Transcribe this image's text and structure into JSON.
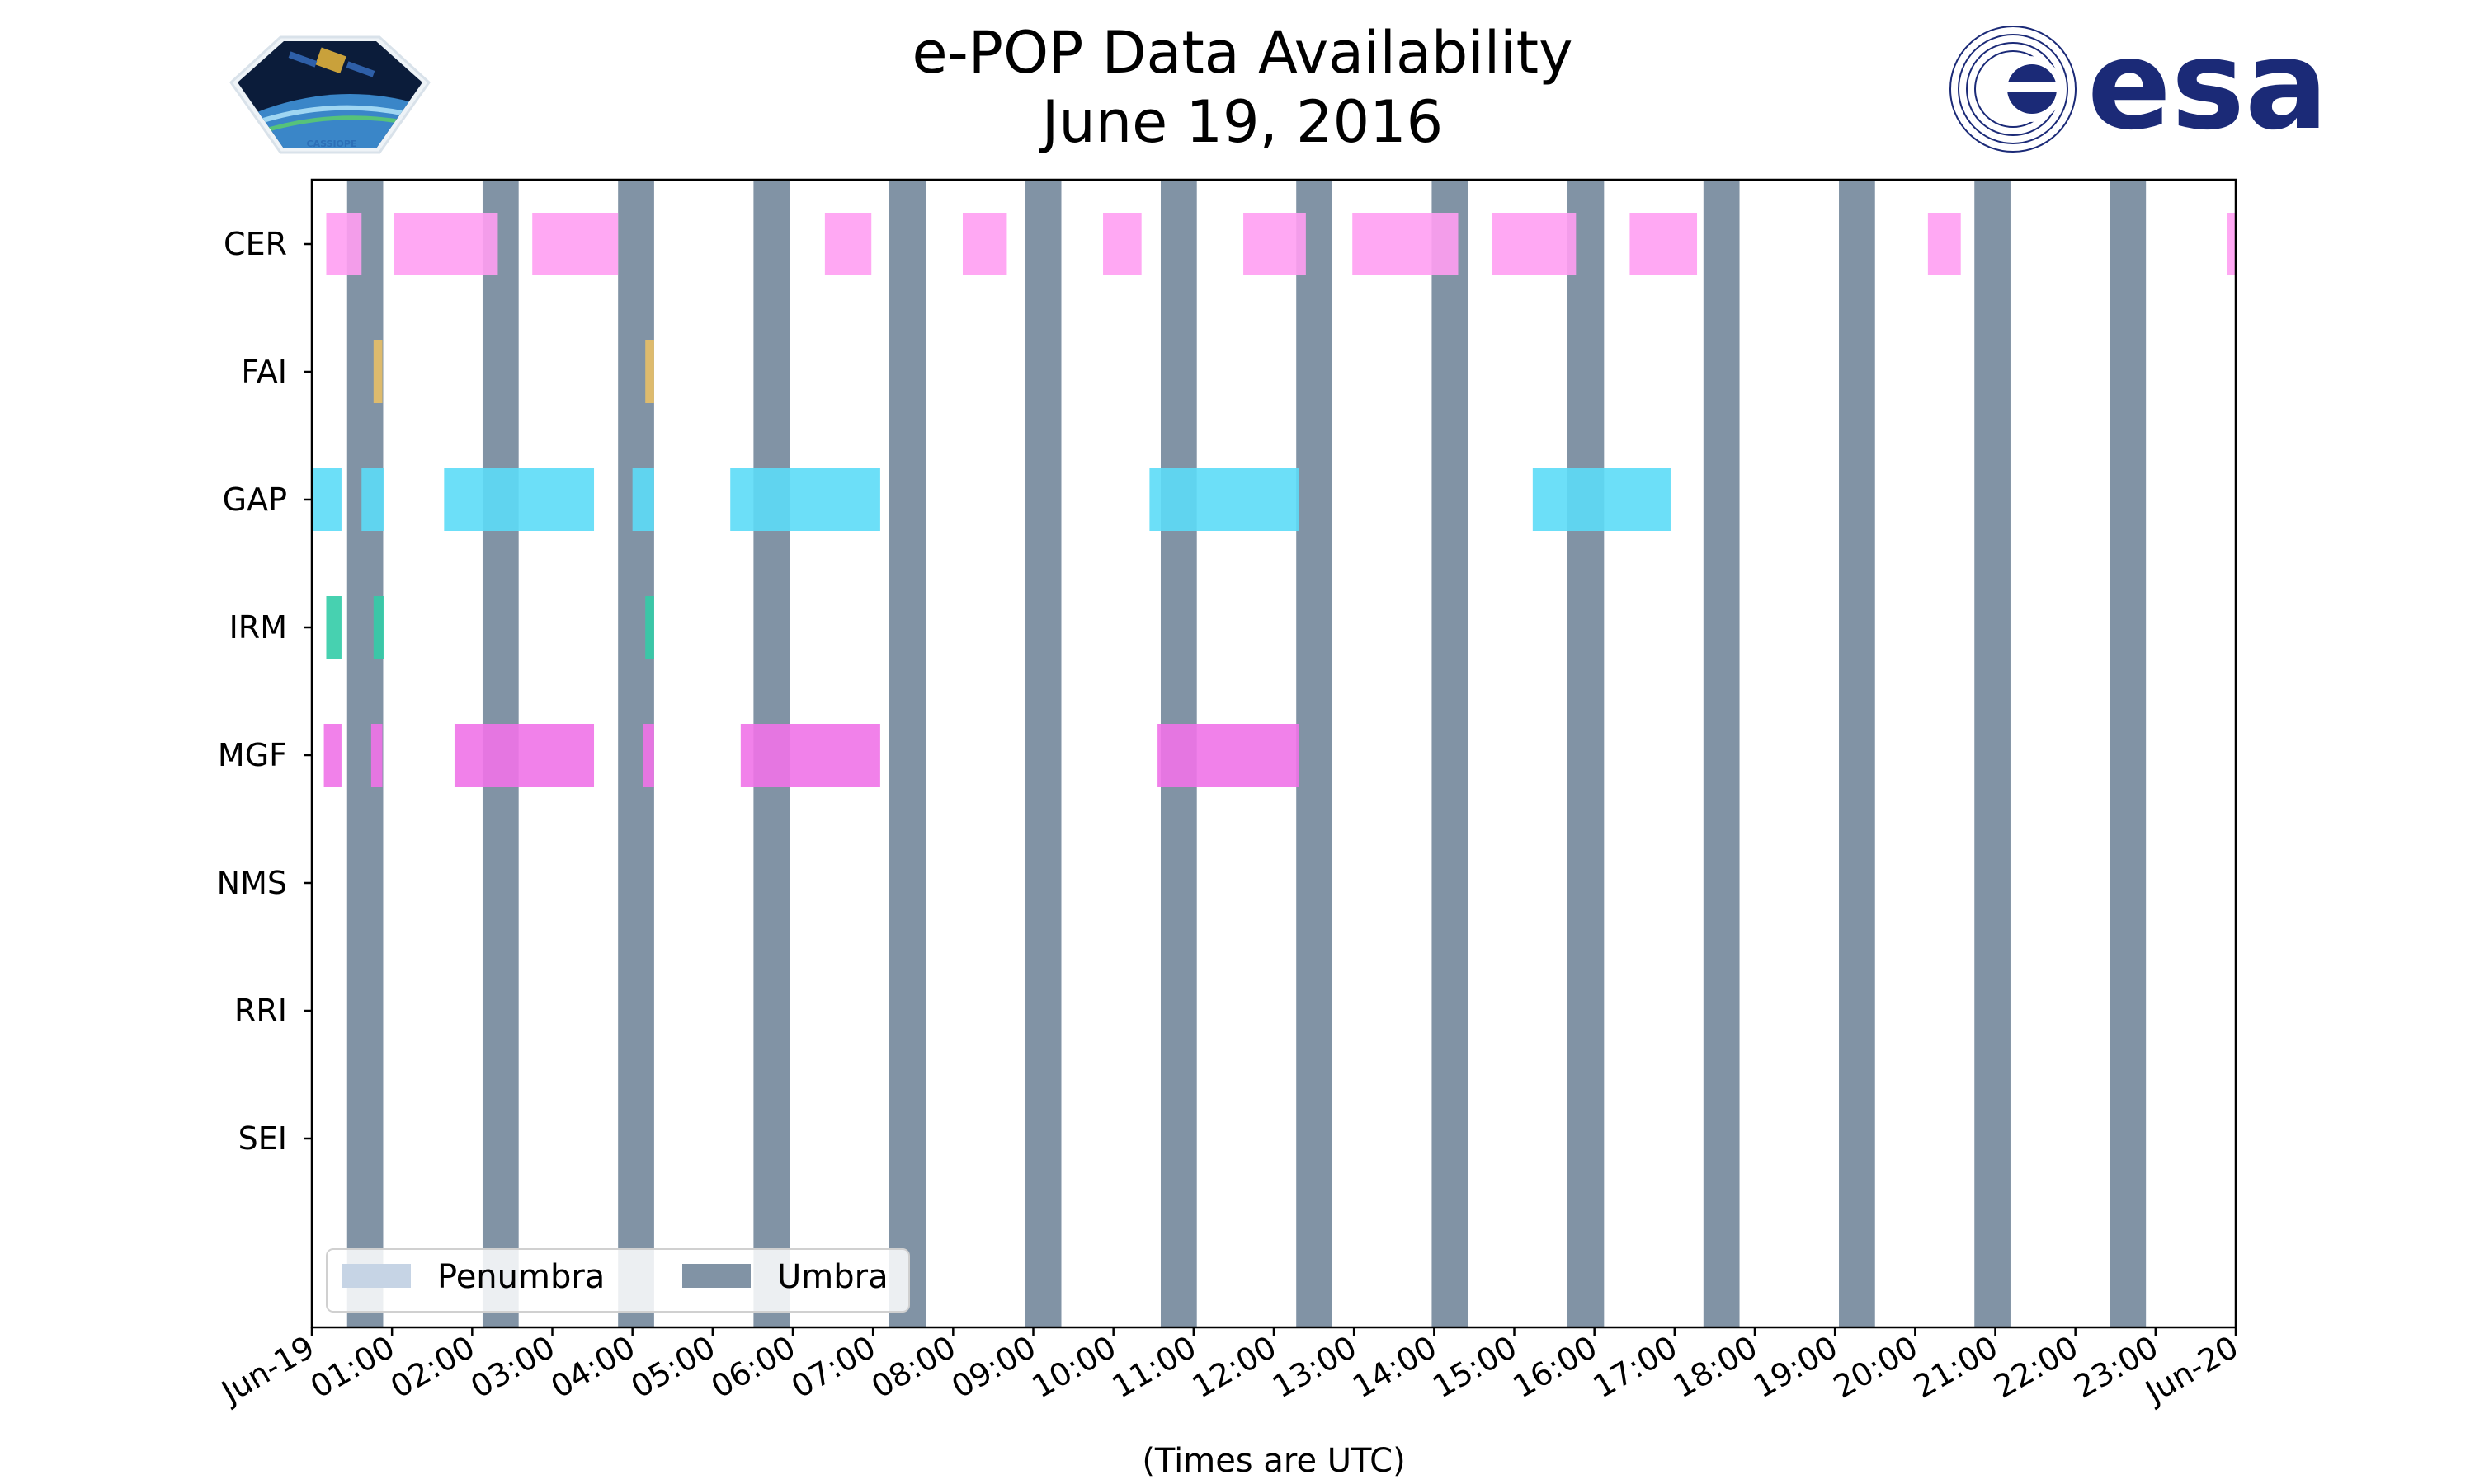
{
  "logos": {
    "left_mission_logo_text": "CASSIOPE",
    "right_agency_logo_text": "esa"
  },
  "chart_data": {
    "type": "bar",
    "orientation": "horizontal-timeline",
    "title": "e-POP Data Availability",
    "subtitle": "June 19, 2016",
    "xlabel": "(Times are UTC)",
    "ylabel": "",
    "x_range_hours": [
      0,
      24
    ],
    "x_ticks": [
      "Jun-19",
      "01:00",
      "02:00",
      "03:00",
      "04:00",
      "05:00",
      "06:00",
      "07:00",
      "08:00",
      "09:00",
      "10:00",
      "11:00",
      "12:00",
      "13:00",
      "14:00",
      "15:00",
      "16:00",
      "17:00",
      "18:00",
      "19:00",
      "20:00",
      "21:00",
      "22:00",
      "23:00",
      "Jun-20"
    ],
    "categories": [
      "CER",
      "FAI",
      "GAP",
      "IRM",
      "MGF",
      "NMS",
      "RRI",
      "SEI"
    ],
    "grid": false,
    "legend": {
      "placement": "lower-left",
      "entries": [
        {
          "name": "Penumbra",
          "color": "#c6d4e5"
        },
        {
          "name": "Umbra",
          "color": "#8193a5"
        }
      ]
    },
    "umbra_color": "#8193a5",
    "umbra_intervals_hours": [
      [
        0.44,
        0.89
      ],
      [
        2.13,
        2.58
      ],
      [
        3.82,
        4.27
      ],
      [
        5.51,
        5.96
      ],
      [
        7.2,
        7.66
      ],
      [
        8.9,
        9.35
      ],
      [
        10.59,
        11.04
      ],
      [
        12.28,
        12.73
      ],
      [
        13.97,
        14.42
      ],
      [
        15.66,
        16.12
      ],
      [
        17.36,
        17.81
      ],
      [
        19.05,
        19.5
      ],
      [
        20.74,
        21.19
      ],
      [
        22.43,
        22.88
      ]
    ],
    "series": [
      {
        "name": "CER",
        "color": "#ff9ff2",
        "intervals_hours": [
          [
            0.18,
            0.62
          ],
          [
            1.02,
            2.32
          ],
          [
            2.75,
            3.82
          ],
          [
            6.4,
            6.98
          ],
          [
            8.12,
            8.67
          ],
          [
            9.87,
            10.35
          ],
          [
            11.62,
            12.4
          ],
          [
            12.98,
            14.3
          ],
          [
            14.72,
            15.77
          ],
          [
            16.44,
            17.28
          ],
          [
            20.16,
            20.57
          ],
          [
            23.89,
            24.0
          ]
        ]
      },
      {
        "name": "FAI",
        "color": "#e8c067",
        "intervals_hours": [
          [
            0.77,
            0.88
          ],
          [
            4.16,
            4.27
          ]
        ]
      },
      {
        "name": "GAP",
        "color": "#5cdcf7",
        "intervals_hours": [
          [
            0.0,
            0.37
          ],
          [
            0.62,
            0.9
          ],
          [
            1.65,
            3.52
          ],
          [
            4.0,
            4.27
          ],
          [
            5.22,
            7.09
          ],
          [
            10.45,
            12.31
          ],
          [
            15.23,
            16.95
          ]
        ]
      },
      {
        "name": "IRM",
        "color": "#33cca7",
        "intervals_hours": [
          [
            0.18,
            0.37
          ],
          [
            0.77,
            0.9
          ],
          [
            4.16,
            4.27
          ]
        ]
      },
      {
        "name": "MGF",
        "color": "#f073e8",
        "intervals_hours": [
          [
            0.15,
            0.37
          ],
          [
            0.74,
            0.88
          ],
          [
            1.78,
            3.52
          ],
          [
            4.13,
            4.27
          ],
          [
            5.35,
            7.09
          ],
          [
            10.55,
            12.31
          ]
        ]
      },
      {
        "name": "NMS",
        "color": "#d59cf0",
        "intervals_hours": []
      },
      {
        "name": "RRI",
        "color": "#9aa3f0",
        "intervals_hours": []
      },
      {
        "name": "SEI",
        "color": "#f0a0a0",
        "intervals_hours": []
      }
    ]
  }
}
